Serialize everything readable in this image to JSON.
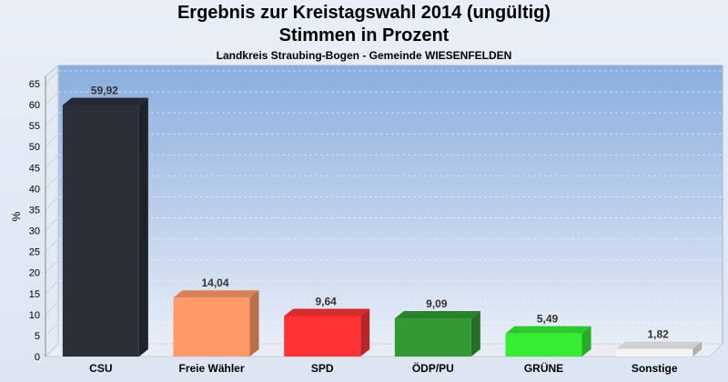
{
  "header": {
    "title_line1": "Ergebnis zur Kreistagswahl 2014 (ungültig)",
    "title_line2": "Stimmen in Prozent",
    "subtitle": "Landkreis Straubing-Bogen - Gemeinde WIESENFELDEN"
  },
  "chart_data": {
    "type": "bar",
    "title": "Ergebnis zur Kreistagswahl 2014 (ungültig) Stimmen in Prozent",
    "subtitle": "Landkreis Straubing-Bogen - Gemeinde WIESENFELDEN",
    "ylabel": "%",
    "xlabel": "",
    "ylim": [
      0,
      65
    ],
    "yticks": [
      0,
      5,
      10,
      15,
      20,
      25,
      30,
      35,
      40,
      45,
      50,
      55,
      60,
      65
    ],
    "grid": true,
    "categories": [
      "CSU",
      "Freie Wähler",
      "SPD",
      "ÖDP/PU",
      "GRÜNE",
      "Sonstige"
    ],
    "values": [
      59.92,
      14.04,
      9.64,
      9.09,
      5.49,
      1.82
    ],
    "value_labels": [
      "59,92",
      "14,04",
      "9,64",
      "9,09",
      "5,49",
      "1,82"
    ],
    "colors": [
      "#2b2f38",
      "#ff9966",
      "#ff3333",
      "#339933",
      "#33ee33",
      "#f4f4f4"
    ]
  }
}
